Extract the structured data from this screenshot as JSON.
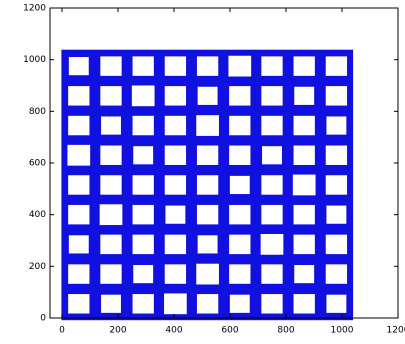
{
  "chart_data": {
    "type": "scatter",
    "color": "#1010e0",
    "xlim": [
      0,
      1200
    ],
    "ylim": [
      0,
      1200
    ],
    "xticks": [
      0,
      200,
      400,
      600,
      800,
      1000,
      1200
    ],
    "yticks": [
      0,
      200,
      400,
      600,
      800,
      1000,
      1200
    ],
    "series": [
      {
        "x": [
          60,
          175,
          290,
          405,
          520,
          635,
          750,
          865,
          980,
          60,
          175,
          290,
          405,
          520,
          635,
          750,
          865,
          980,
          60,
          175,
          290,
          405,
          520,
          635,
          750,
          865,
          980,
          60,
          175,
          290,
          405,
          520,
          635,
          750,
          865,
          980,
          60,
          175,
          290,
          405,
          520,
          635,
          750,
          865,
          980,
          60,
          175,
          290,
          405,
          520,
          635,
          750,
          865,
          980,
          60,
          175,
          290,
          405,
          520,
          635,
          750,
          865,
          980,
          60,
          175,
          290,
          405,
          520,
          635,
          750,
          865,
          980,
          60,
          175,
          290,
          405,
          520,
          635,
          750,
          865,
          980
        ],
        "values": [
          55,
          55,
          55,
          55,
          55,
          55,
          55,
          55,
          55,
          170,
          170,
          170,
          170,
          170,
          170,
          170,
          170,
          170,
          285,
          285,
          285,
          285,
          285,
          285,
          285,
          285,
          285,
          400,
          400,
          400,
          400,
          400,
          400,
          400,
          400,
          400,
          515,
          515,
          515,
          515,
          515,
          515,
          515,
          515,
          515,
          630,
          630,
          630,
          630,
          630,
          630,
          630,
          630,
          630,
          745,
          745,
          745,
          745,
          745,
          745,
          745,
          745,
          745,
          860,
          860,
          860,
          860,
          860,
          860,
          860,
          860,
          860,
          975,
          975,
          975,
          975,
          975,
          975,
          975,
          975,
          975
        ],
        "sizes": [
          85,
          80,
          85,
          90,
          85,
          80,
          85,
          85,
          80,
          85,
          85,
          80,
          85,
          90,
          85,
          85,
          80,
          85,
          80,
          85,
          85,
          85,
          80,
          85,
          90,
          85,
          85,
          85,
          90,
          85,
          80,
          85,
          85,
          85,
          85,
          80,
          85,
          85,
          85,
          85,
          85,
          80,
          85,
          90,
          85,
          90,
          85,
          80,
          85,
          85,
          85,
          80,
          85,
          85,
          85,
          80,
          85,
          85,
          90,
          85,
          85,
          85,
          80,
          85,
          85,
          90,
          85,
          80,
          85,
          85,
          80,
          85,
          80,
          85,
          85,
          85,
          85,
          90,
          85,
          85,
          85
        ]
      }
    ]
  }
}
